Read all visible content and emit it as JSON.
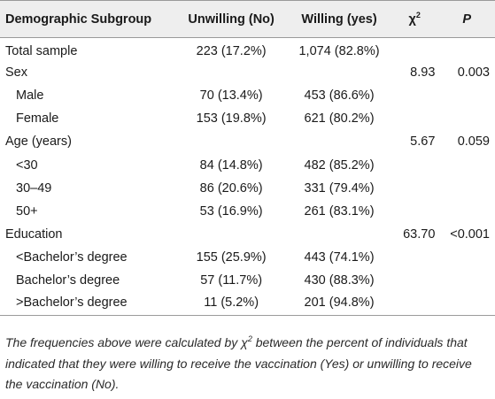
{
  "headers": {
    "subgroup": "Demographic Subgroup",
    "unwilling": "Unwilling (No)",
    "willing": "Willing (yes)",
    "chi_symbol": "χ",
    "chi_sup": "2",
    "p": "P"
  },
  "rows": [
    {
      "label": "Total sample",
      "unwilling": "223 (17.2%)",
      "willing": "1,074 (82.8%)",
      "chi": "",
      "p": ""
    },
    {
      "label": "Sex",
      "unwilling": "",
      "willing": "",
      "chi": "8.93",
      "p": "0.003"
    },
    {
      "label": "Male",
      "unwilling": "70 (13.4%)",
      "willing": "453 (86.6%)",
      "chi": "",
      "p": ""
    },
    {
      "label": "Female",
      "unwilling": "153 (19.8%)",
      "willing": "621 (80.2%)",
      "chi": "",
      "p": ""
    },
    {
      "label": "Age (years)",
      "unwilling": "",
      "willing": "",
      "chi": "5.67",
      "p": "0.059"
    },
    {
      "label": "<30",
      "unwilling": "84 (14.8%)",
      "willing": "482 (85.2%)",
      "chi": "",
      "p": ""
    },
    {
      "label": "30–49",
      "unwilling": "86 (20.6%)",
      "willing": "331 (79.4%)",
      "chi": "",
      "p": ""
    },
    {
      "label": "50+",
      "unwilling": "53 (16.9%)",
      "willing": "261 (83.1%)",
      "chi": "",
      "p": ""
    },
    {
      "label": "Education",
      "unwilling": "",
      "willing": "",
      "chi": "63.70",
      "p": "<0.001"
    },
    {
      "label": "<Bachelor’s degree",
      "unwilling": "155 (25.9%)",
      "willing": "443 (74.1%)",
      "chi": "",
      "p": ""
    },
    {
      "label": "Bachelor’s degree",
      "unwilling": "57 (11.7%)",
      "willing": "430 (88.3%)",
      "chi": "",
      "p": ""
    },
    {
      "label": ">Bachelor’s degree",
      "unwilling": "11 (5.2%)",
      "willing": "201 (94.8%)",
      "chi": "",
      "p": ""
    }
  ],
  "footnote": {
    "before_symbol": "The frequencies above were calculated by ",
    "symbol": "χ",
    "sup": "2",
    "after_symbol": " between the percent of individuals that indicated that they were willing to receive the vaccination (Yes) or unwilling to receive the vaccination (No)."
  }
}
